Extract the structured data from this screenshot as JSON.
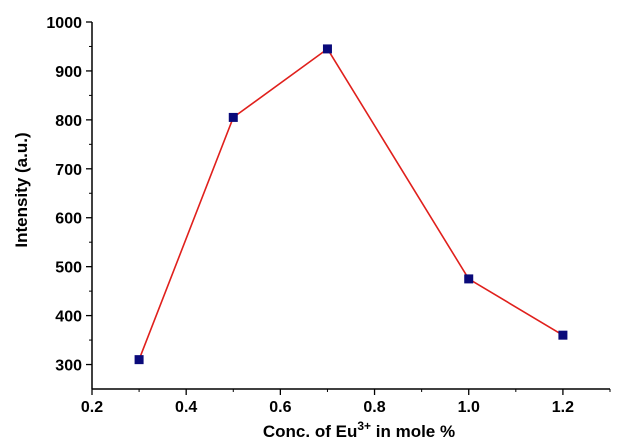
{
  "chart_data": {
    "type": "line",
    "title": "",
    "xlabel": {
      "prefix": "Conc. of Eu",
      "superscript": "3+",
      "suffix": " in mole %"
    },
    "ylabel": "Intensity (a.u.)",
    "xlim": [
      0.2,
      1.3
    ],
    "ylim": [
      250,
      1000
    ],
    "x_ticks": [
      "0.2",
      "0.4",
      "0.6",
      "0.8",
      "1.0",
      "1.2"
    ],
    "y_ticks": [
      "300",
      "400",
      "500",
      "600",
      "700",
      "800",
      "900",
      "1000"
    ],
    "grid": false,
    "legend": "none",
    "series": [
      {
        "x": [
          0.3,
          0.5,
          0.7,
          1.0,
          1.2
        ],
        "y": [
          310,
          805,
          945,
          475,
          360
        ],
        "line_color": "#e0201c",
        "marker_color": "#0a0a7a",
        "marker": "square"
      }
    ]
  }
}
